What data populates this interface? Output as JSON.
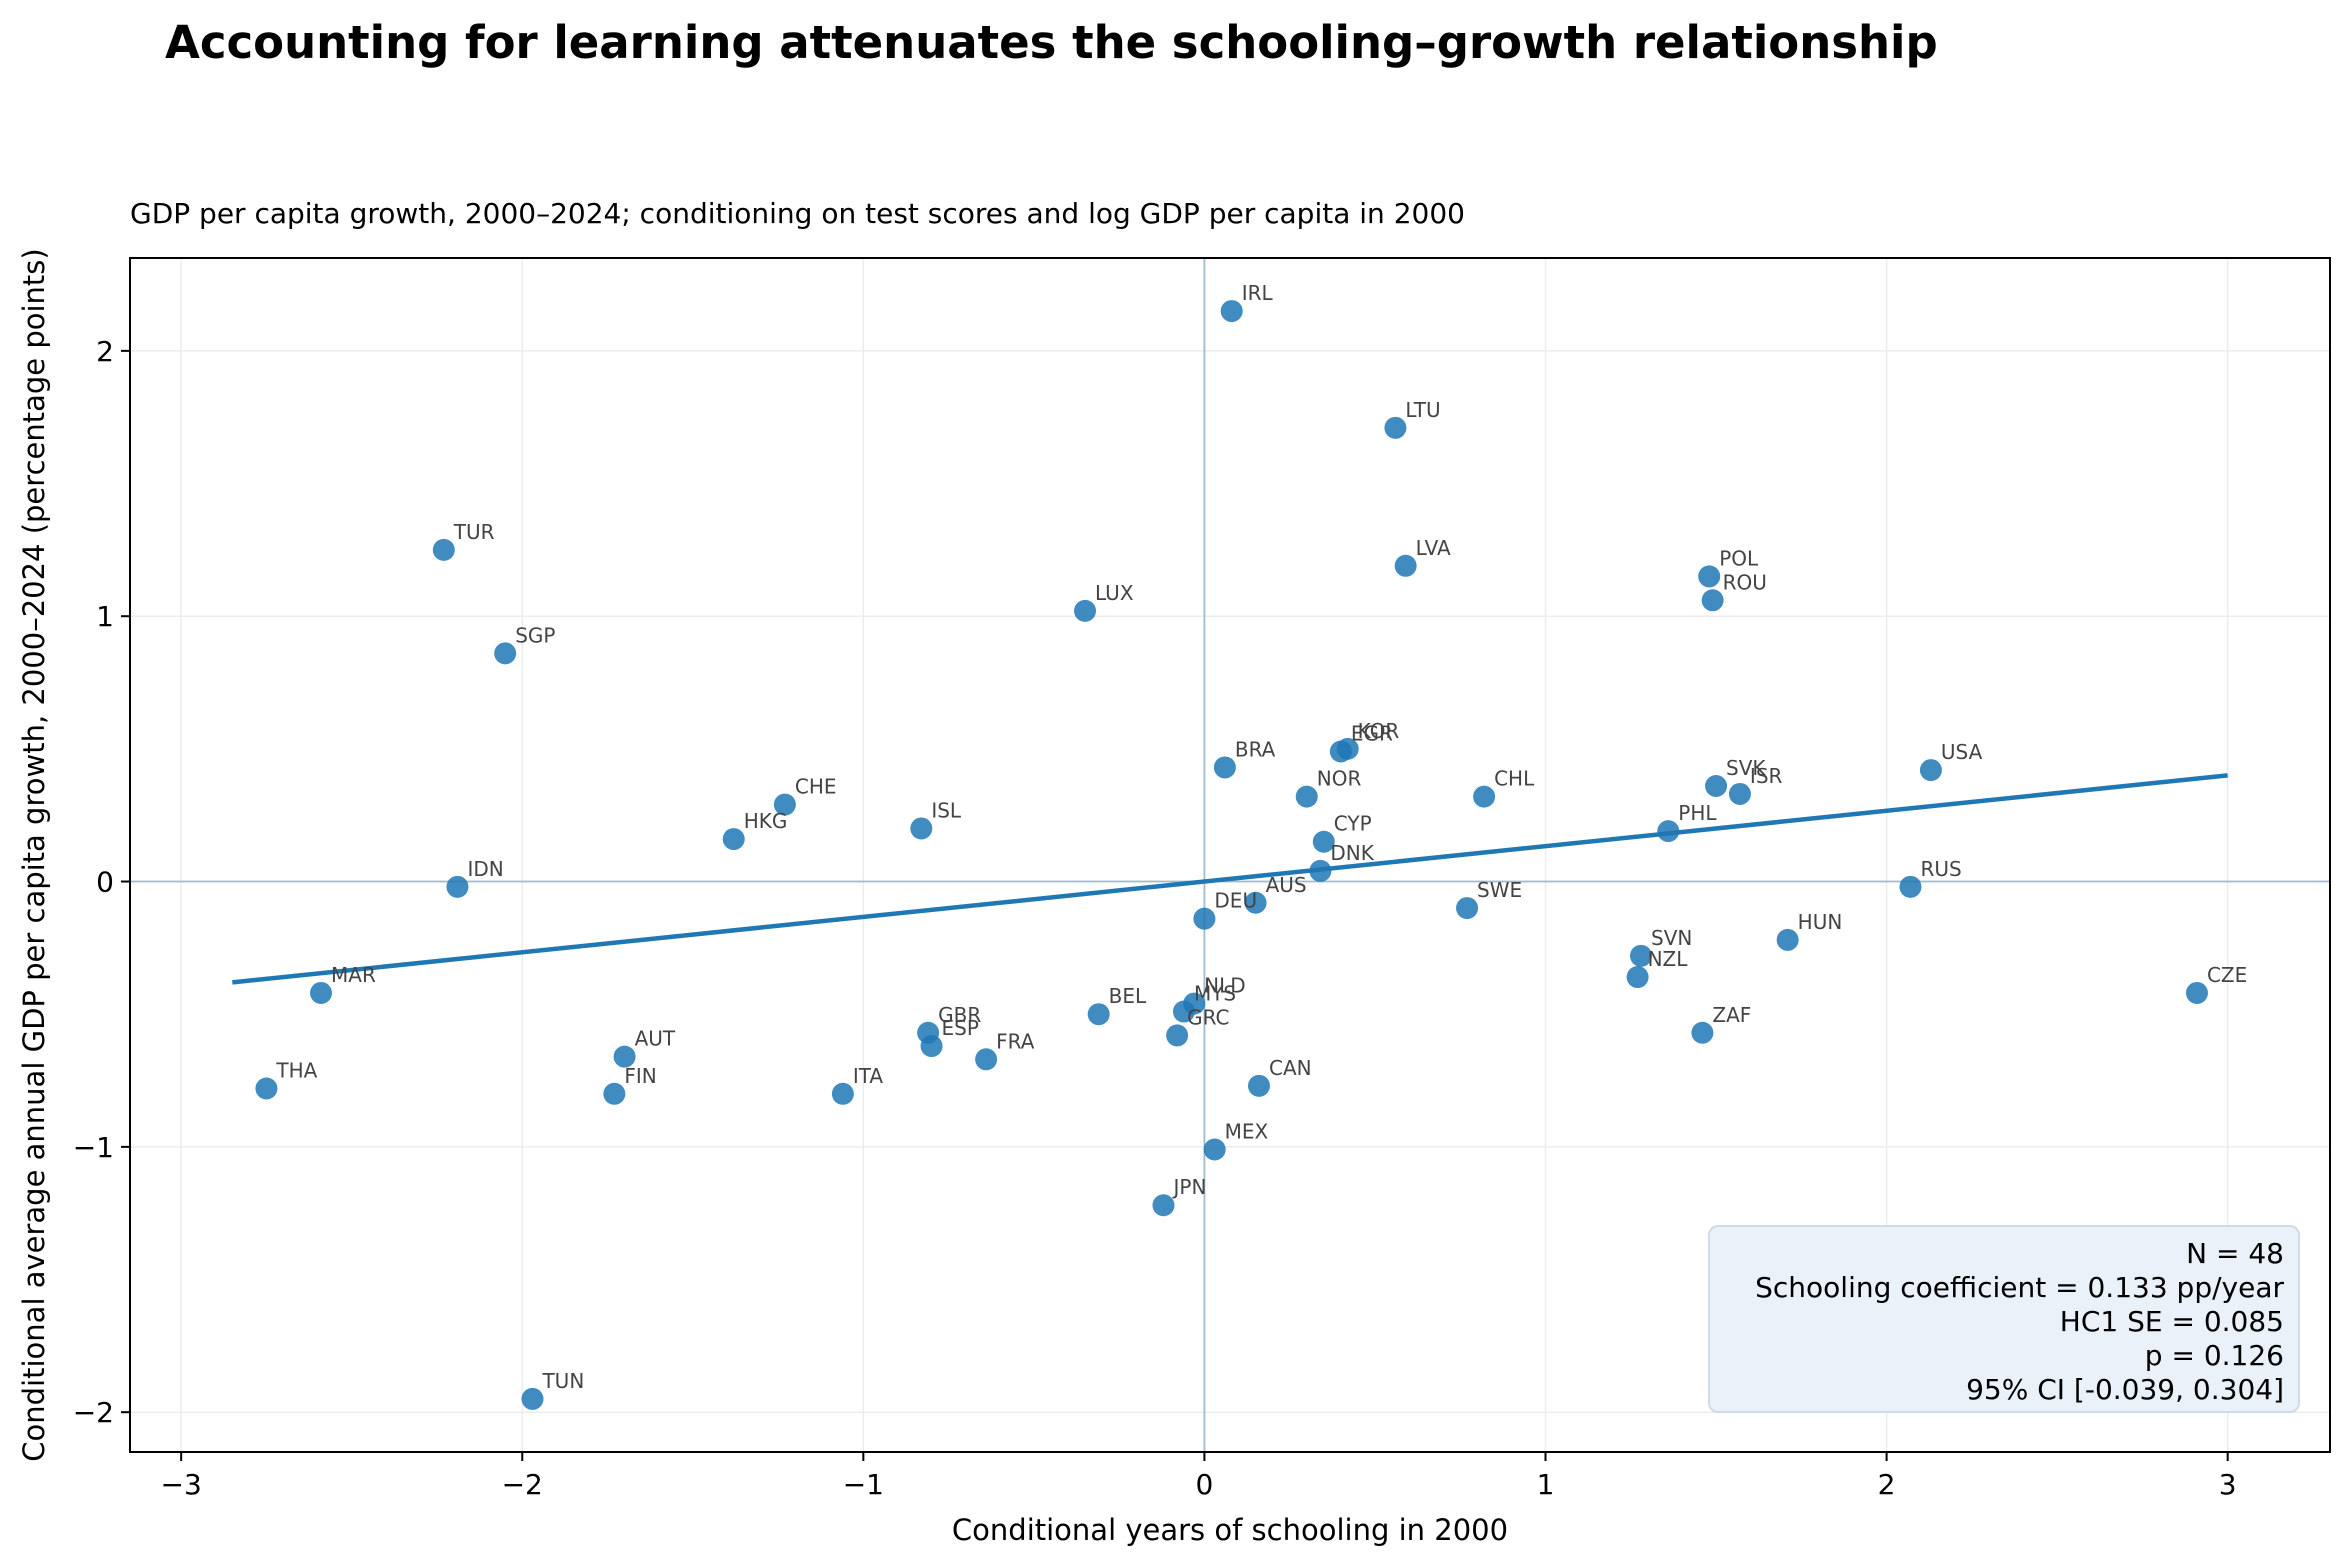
{
  "title": "Accounting for learning attenuates the schooling–growth relationship",
  "subtitle": "GDP per capita growth, 2000–2024; conditioning on test scores and log GDP per capita in 2000",
  "stats": {
    "n": "N = 48",
    "coef": "Schooling coefficient = 0.133 pp/year",
    "se": "HC1 SE = 0.085",
    "p": "p = 0.126",
    "ci": "95% CI [-0.039, 0.304]"
  },
  "colors": {
    "point": "#1f77b4",
    "line": "#1f77b4",
    "zero_line": "#9fbccb",
    "grid": "#ececec"
  },
  "chart_data": {
    "type": "scatter",
    "xlabel": "Conditional years of schooling in 2000",
    "ylabel": "Conditional average annual GDP per capita growth, 2000–2024 (percentage points)",
    "xlim": [
      -3.15,
      3.3
    ],
    "ylim": [
      -2.15,
      2.35
    ],
    "xticks": [
      -3,
      -2,
      -1,
      0,
      1,
      2,
      3
    ],
    "xtick_labels": [
      "−3",
      "−2",
      "−1",
      "0",
      "1",
      "2",
      "3"
    ],
    "yticks": [
      -2,
      -1,
      0,
      1,
      2
    ],
    "ytick_labels": [
      "−2",
      "−1",
      "0",
      "1",
      "2"
    ],
    "grid": true,
    "reference_lines": {
      "x": 0,
      "y": 0
    },
    "fit_line": {
      "x": [
        -2.85,
        3.0
      ],
      "y": [
        -0.38,
        0.4
      ]
    },
    "points": [
      {
        "label": "IRL",
        "x": 0.08,
        "y": 2.15
      },
      {
        "label": "LTU",
        "x": 0.56,
        "y": 1.71
      },
      {
        "label": "TUR",
        "x": -2.23,
        "y": 1.25
      },
      {
        "label": "LVA",
        "x": 0.59,
        "y": 1.19
      },
      {
        "label": "POL",
        "x": 1.48,
        "y": 1.15
      },
      {
        "label": "ROU",
        "x": 1.49,
        "y": 1.06
      },
      {
        "label": "LUX",
        "x": -0.35,
        "y": 1.02
      },
      {
        "label": "SGP",
        "x": -2.05,
        "y": 0.86
      },
      {
        "label": "KOR",
        "x": 0.42,
        "y": 0.5
      },
      {
        "label": "EGR",
        "x": 0.4,
        "y": 0.49
      },
      {
        "label": "BRA",
        "x": 0.06,
        "y": 0.43
      },
      {
        "label": "USA",
        "x": 2.13,
        "y": 0.42
      },
      {
        "label": "SVK",
        "x": 1.5,
        "y": 0.36
      },
      {
        "label": "ISR",
        "x": 1.57,
        "y": 0.33
      },
      {
        "label": "NOR",
        "x": 0.3,
        "y": 0.32
      },
      {
        "label": "CHL",
        "x": 0.82,
        "y": 0.32
      },
      {
        "label": "CHE",
        "x": -1.23,
        "y": 0.29
      },
      {
        "label": "ISL",
        "x": -0.83,
        "y": 0.2
      },
      {
        "label": "PHL",
        "x": 1.36,
        "y": 0.19
      },
      {
        "label": "HKG",
        "x": -1.38,
        "y": 0.16
      },
      {
        "label": "CYP",
        "x": 0.35,
        "y": 0.15
      },
      {
        "label": "DNK",
        "x": 0.34,
        "y": 0.04
      },
      {
        "label": "IDN",
        "x": -2.19,
        "y": -0.02
      },
      {
        "label": "RUS",
        "x": 2.07,
        "y": -0.02
      },
      {
        "label": "AUS",
        "x": 0.15,
        "y": -0.08
      },
      {
        "label": "SWE",
        "x": 0.77,
        "y": -0.1
      },
      {
        "label": "DEU",
        "x": 0.0,
        "y": -0.14
      },
      {
        "label": "HUN",
        "x": 1.71,
        "y": -0.22
      },
      {
        "label": "SVN",
        "x": 1.28,
        "y": -0.28
      },
      {
        "label": "NZL",
        "x": 1.27,
        "y": -0.36
      },
      {
        "label": "MAR",
        "x": -2.59,
        "y": -0.42
      },
      {
        "label": "CZE",
        "x": 2.91,
        "y": -0.42
      },
      {
        "label": "NLD",
        "x": -0.03,
        "y": -0.46
      },
      {
        "label": "MYS",
        "x": -0.06,
        "y": -0.49
      },
      {
        "label": "BEL",
        "x": -0.31,
        "y": -0.5
      },
      {
        "label": "GBR",
        "x": -0.81,
        "y": -0.57
      },
      {
        "label": "ZAF",
        "x": 1.46,
        "y": -0.57
      },
      {
        "label": "GRC",
        "x": -0.08,
        "y": -0.58
      },
      {
        "label": "ESP",
        "x": -0.8,
        "y": -0.62
      },
      {
        "label": "AUT",
        "x": -1.7,
        "y": -0.66
      },
      {
        "label": "FRA",
        "x": -0.64,
        "y": -0.67
      },
      {
        "label": "CAN",
        "x": 0.16,
        "y": -0.77
      },
      {
        "label": "THA",
        "x": -2.75,
        "y": -0.78
      },
      {
        "label": "FIN",
        "x": -1.73,
        "y": -0.8
      },
      {
        "label": "ITA",
        "x": -1.06,
        "y": -0.8
      },
      {
        "label": "MEX",
        "x": 0.03,
        "y": -1.01
      },
      {
        "label": "JPN",
        "x": -0.12,
        "y": -1.22
      },
      {
        "label": "TUN",
        "x": -1.97,
        "y": -1.95
      }
    ]
  }
}
